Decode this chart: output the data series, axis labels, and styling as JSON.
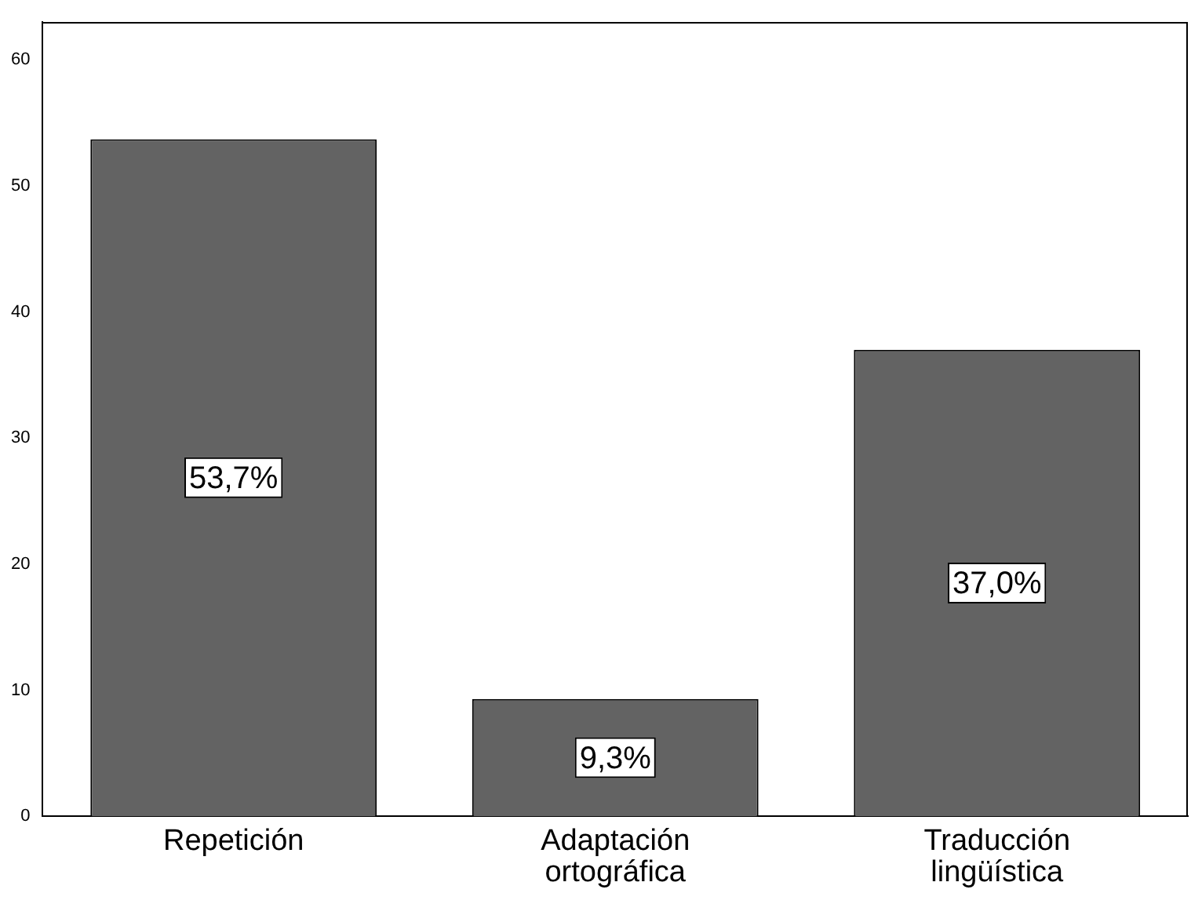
{
  "chart_data": {
    "type": "bar",
    "categories": [
      "Repetición",
      "Adaptación ortográfica",
      "Traducción lingüística"
    ],
    "values": [
      53.7,
      9.3,
      37.0
    ],
    "color": "#636363",
    "value_labels": [
      "53,7%",
      "9,3%",
      "37,0%"
    ],
    "ylim": [
      0,
      63
    ],
    "yticks": [
      0,
      10,
      20,
      30,
      40,
      50,
      60
    ],
    "grid": false,
    "legend": false
  }
}
